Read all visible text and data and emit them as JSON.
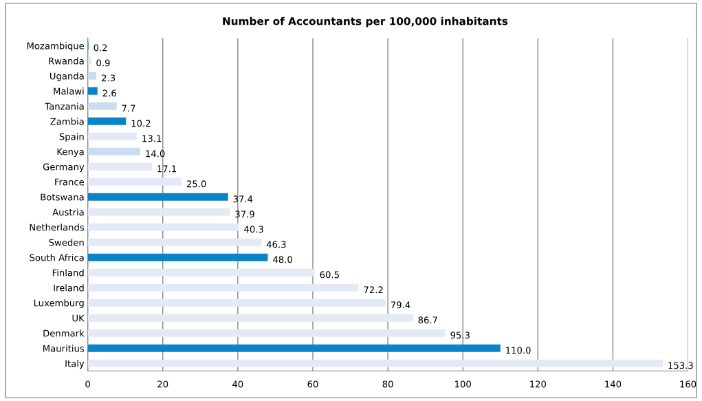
{
  "chart_data": {
    "type": "bar",
    "orientation": "horizontal",
    "title": "Number of Accountants per 100,000 inhabitants",
    "categories": [
      "Mozambique",
      "Rwanda",
      "Uganda",
      "Malawi",
      "Tanzania",
      "Zambia",
      "Spain",
      "Kenya",
      "Germany",
      "France",
      "Botswana",
      "Austria",
      "Netherlands",
      "Sweden",
      "South Africa",
      "Finland",
      "Ireland",
      "Luxemburg",
      "UK",
      "Denmark",
      "Mauritius",
      "Italy"
    ],
    "values": [
      0.2,
      0.9,
      2.3,
      2.6,
      7.7,
      10.2,
      13.1,
      14.0,
      17.1,
      25.0,
      37.4,
      37.9,
      40.3,
      46.3,
      48.0,
      60.5,
      72.2,
      79.4,
      86.7,
      95.3,
      110.0,
      153.3
    ],
    "value_labels": [
      "0.2",
      "0.9",
      "2.3",
      "2.6",
      "7.7",
      "10.2",
      "13.1",
      "14.0",
      "17.1",
      "25.0",
      "37.4",
      "37.9",
      "40.3",
      "46.3",
      "48.0",
      "60.5",
      "72.2",
      "79.4",
      "86.7",
      "95.3",
      "110.0",
      "153.3"
    ],
    "colors": [
      "#0a84c8",
      "#dde7f4",
      "#c9dcf0",
      "#0a84c8",
      "#c9dcf0",
      "#0a84c8",
      "#e3eaf5",
      "#c9dcf0",
      "#e3eaf5",
      "#e3eaf5",
      "#0a84c8",
      "#e3eaf5",
      "#e3eaf5",
      "#e3eaf5",
      "#0a84c8",
      "#e3eaf5",
      "#e3eaf5",
      "#e3eaf5",
      "#e3eaf5",
      "#e3eaf5",
      "#0a84c8",
      "#e3eaf5"
    ],
    "xlim": [
      0,
      160
    ],
    "xticks": [
      0,
      20,
      40,
      60,
      80,
      100,
      120,
      140,
      160
    ],
    "grid": "x",
    "legend": false
  }
}
